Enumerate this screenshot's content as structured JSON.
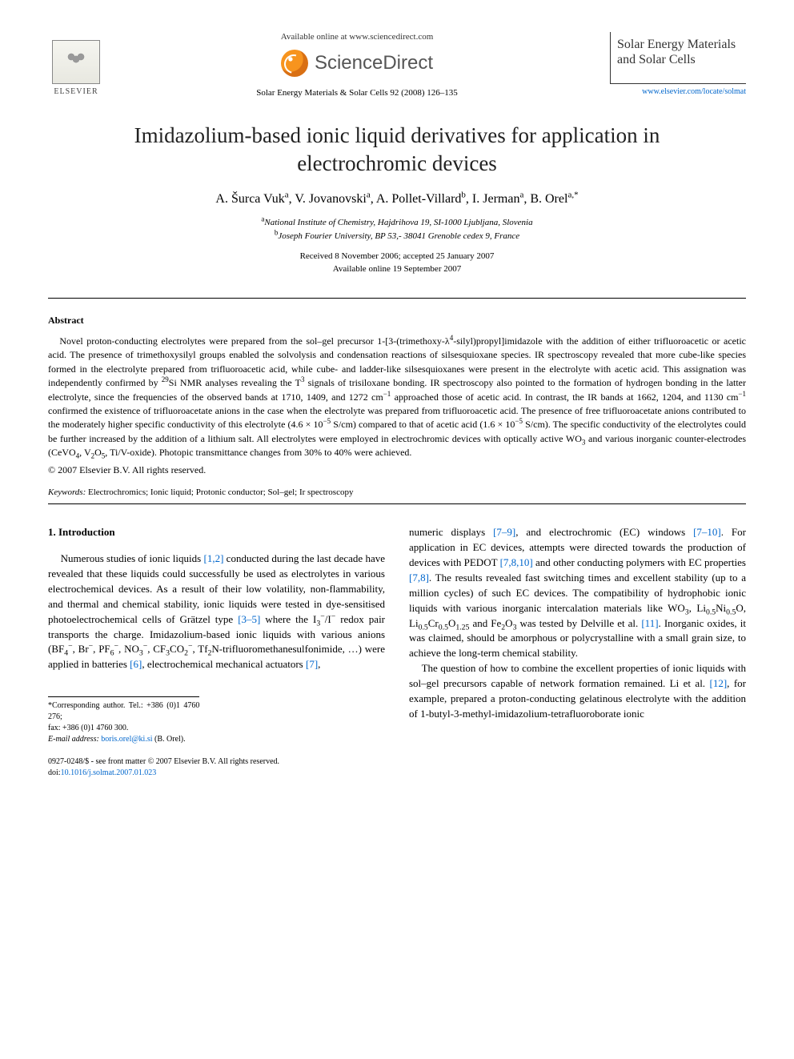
{
  "header": {
    "publisher_logo_text": "ELSEVIER",
    "available_text": "Available online at www.sciencedirect.com",
    "sciencedirect_label": "ScienceDirect",
    "journal_ref": "Solar Energy Materials & Solar Cells 92 (2008) 126–135",
    "journal_box_name": "Solar Energy Materials and Solar Cells",
    "journal_link": "www.elsevier.com/locate/solmat"
  },
  "article": {
    "title": "Imidazolium-based ionic liquid derivatives for application in electrochromic devices",
    "authors_html": "A. Šurca Vuk<sup>a</sup>, V. Jovanovski<sup>a</sup>, A. Pollet-Villard<sup>b</sup>, I. Jerman<sup>a</sup>, B. Orel<sup>a,*</sup>",
    "affiliation_a": "National Institute of Chemistry, Hajdrihova 19, SI-1000 Ljubljana, Slovenia",
    "affiliation_b": "Joseph Fourier University, BP 53,- 38041 Grenoble cedex 9, France",
    "received": "Received 8 November 2006; accepted 25 January 2007",
    "online": "Available online 19 September 2007"
  },
  "abstract": {
    "heading": "Abstract",
    "body_html": "Novel proton-conducting electrolytes were prepared from the sol–gel precursor 1-[3-(trimethoxy-λ<sup>4</sup>-silyl)propyl]imidazole with the addition of either trifluoroacetic or acetic acid. The presence of trimethoxysilyl groups enabled the solvolysis and condensation reactions of silsesquioxane species. IR spectroscopy revealed that more cube-like species formed in the electrolyte prepared from trifluoroacetic acid, while cube- and ladder-like silsesquioxanes were present in the electrolyte with acetic acid. This assignation was independently confirmed by <sup>29</sup>Si NMR analyses revealing the T<sup>3</sup> signals of trisiloxane bonding. IR spectroscopy also pointed to the formation of hydrogen bonding in the latter electrolyte, since the frequencies of the observed bands at 1710, 1409, and 1272 cm<sup>−1</sup> approached those of acetic acid. In contrast, the IR bands at 1662, 1204, and 1130 cm<sup>−1</sup> confirmed the existence of trifluoroacetate anions in the case when the electrolyte was prepared from trifluoroacetic acid. The presence of free trifluoroacetate anions contributed to the moderately higher specific conductivity of this electrolyte (4.6 × 10<sup>−5</sup> S/cm) compared to that of acetic acid (1.6 × 10<sup>−5</sup> S/cm). The specific conductivity of the electrolytes could be further increased by the addition of a lithium salt. All electrolytes were employed in electrochromic devices with optically active WO<sub>3</sub> and various inorganic counter-electrodes (CeVO<sub>4</sub>, V<sub>2</sub>O<sub>5</sub>, Ti/V-oxide). Photopic transmittance changes from 30% to 40% were achieved.",
    "copyright": "© 2007 Elsevier B.V. All rights reserved.",
    "keywords_label": "Keywords:",
    "keywords": "Electrochromics; Ionic liquid; Protonic conductor; Sol–gel; Ir spectroscopy"
  },
  "intro": {
    "heading": "1. Introduction",
    "left_col_html": "Numerous studies of ionic liquids <span class=\"link\">[1,2]</span> conducted during the last decade have revealed that these liquids could successfully be used as electrolytes in various electrochemical devices. As a result of their low volatility, non-flammability, and thermal and chemical stability, ionic liquids were tested in dye-sensitised photoelectrochemical cells of Grätzel type <span class=\"link\">[3–5]</span> where the I<sub>3</sub><sup>−</sup>/I<sup>−</sup> redox pair transports the charge. Imidazolium-based ionic liquids with various anions (BF<sub>4</sub><sup>−</sup>, Br<sup>−</sup>, PF<sub>6</sub><sup>−</sup>, NO<sub>3</sub><sup>−</sup>, CF<sub>3</sub>CO<sub>2</sub><sup>−</sup>, Tf<sub>2</sub>N-trifluoromethanesulfonimide, …) were applied in batteries <span class=\"link\">[6]</span>, electrochemical mechanical actuators <span class=\"link\">[7]</span>,",
    "right_col_p1_html": "numeric displays <span class=\"link\">[7–9]</span>, and electrochromic (EC) windows <span class=\"link\">[7–10]</span>. For application in EC devices, attempts were directed towards the production of devices with PEDOT <span class=\"link\">[7,8,10]</span> and other conducting polymers with EC properties <span class=\"link\">[7,8]</span>. The results revealed fast switching times and excellent stability (up to a million cycles) of such EC devices. The compatibility of hydrophobic ionic liquids with various inorganic intercalation materials like WO<sub>3</sub>, Li<sub>0.5</sub>Ni<sub>0.5</sub>O, Li<sub>0.5</sub>Cr<sub>0.5</sub>O<sub>1.25</sub> and Fe<sub>2</sub>O<sub>3</sub> was tested by Delville et al. <span class=\"link\">[11]</span>. Inorganic oxides, it was claimed, should be amorphous or polycrystalline with a small grain size, to achieve the long-term chemical stability.",
    "right_col_p2_html": "The question of how to combine the excellent properties of ionic liquids with sol–gel precursors capable of network formation remained. Li et al. <span class=\"link\">[12]</span>, for example, prepared a proton-conducting gelatinous electrolyte with the addition of 1-butyl-3-methyl-imidazolium-tetrafluoroborate ionic"
  },
  "footnotes": {
    "corresponding": "*Corresponding author. Tel.: +386 (0)1 4760 276;",
    "fax": "fax: +386 (0)1 4760 300.",
    "email_label": "E-mail address:",
    "email": "boris.orel@ki.si",
    "email_name": "(B. Orel)."
  },
  "footer": {
    "front_matter": "0927-0248/$ - see front matter © 2007 Elsevier B.V. All rights reserved.",
    "doi_label": "doi:",
    "doi": "10.1016/j.solmat.2007.01.023"
  },
  "colors": {
    "link": "#0066cc",
    "text": "#000000",
    "bg": "#ffffff",
    "orange": "#f7941e"
  }
}
